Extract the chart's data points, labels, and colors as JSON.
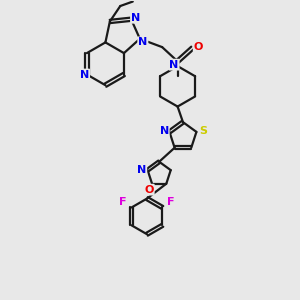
{
  "background_color": "#e8e8e8",
  "bond_color": "#1a1a1a",
  "atom_colors": {
    "N": "#0000ee",
    "O": "#ee0000",
    "S": "#cccc00",
    "F": "#dd00dd",
    "C": "#1a1a1a"
  },
  "figsize": [
    3.0,
    3.0
  ],
  "dpi": 100
}
